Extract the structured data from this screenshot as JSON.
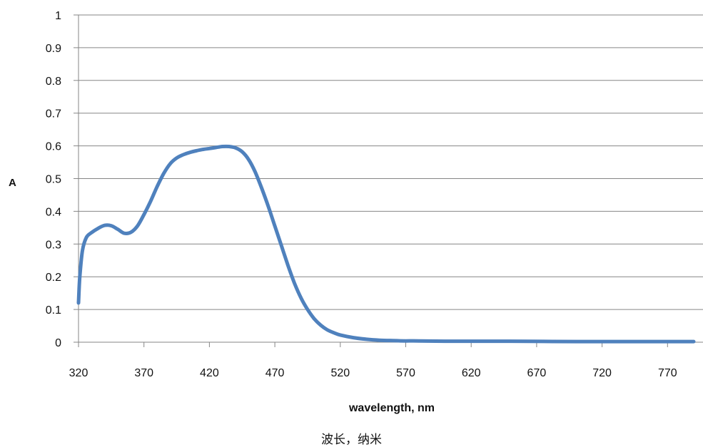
{
  "chart_data": {
    "type": "line",
    "title": "",
    "xlabel": "wavelength, nm",
    "ylabel": "A",
    "xlim": [
      320,
      790
    ],
    "ylim": [
      0,
      1
    ],
    "x_ticks": [
      "320",
      "370",
      "420",
      "470",
      "520",
      "570",
      "620",
      "670",
      "720",
      "770"
    ],
    "y_ticks": [
      "0",
      "0.1",
      "0.2",
      "0.3",
      "0.4",
      "0.5",
      "0.6",
      "0.7",
      "0.8",
      "0.9",
      "1"
    ],
    "grid": "horizontal",
    "series": [
      {
        "color": "#4f81bd",
        "x": [
          320,
          321,
          323,
          326,
          330,
          335,
          340,
          345,
          350,
          355,
          360,
          365,
          370,
          375,
          380,
          385,
          390,
          395,
          400,
          405,
          410,
          415,
          420,
          425,
          430,
          435,
          440,
          445,
          450,
          455,
          460,
          465,
          470,
          475,
          480,
          485,
          490,
          495,
          500,
          505,
          510,
          515,
          520,
          530,
          540,
          550,
          560,
          570,
          580,
          600,
          620,
          650,
          700,
          750,
          790
        ],
        "y": [
          0.12,
          0.2,
          0.28,
          0.32,
          0.335,
          0.348,
          0.357,
          0.356,
          0.345,
          0.333,
          0.336,
          0.355,
          0.39,
          0.43,
          0.475,
          0.515,
          0.545,
          0.563,
          0.573,
          0.58,
          0.585,
          0.589,
          0.592,
          0.595,
          0.598,
          0.598,
          0.594,
          0.582,
          0.558,
          0.52,
          0.47,
          0.415,
          0.355,
          0.295,
          0.235,
          0.18,
          0.135,
          0.1,
          0.072,
          0.052,
          0.038,
          0.029,
          0.022,
          0.014,
          0.009,
          0.006,
          0.005,
          0.004,
          0.004,
          0.003,
          0.003,
          0.003,
          0.002,
          0.002,
          0.002
        ]
      }
    ]
  },
  "caption": "波长，纳米"
}
